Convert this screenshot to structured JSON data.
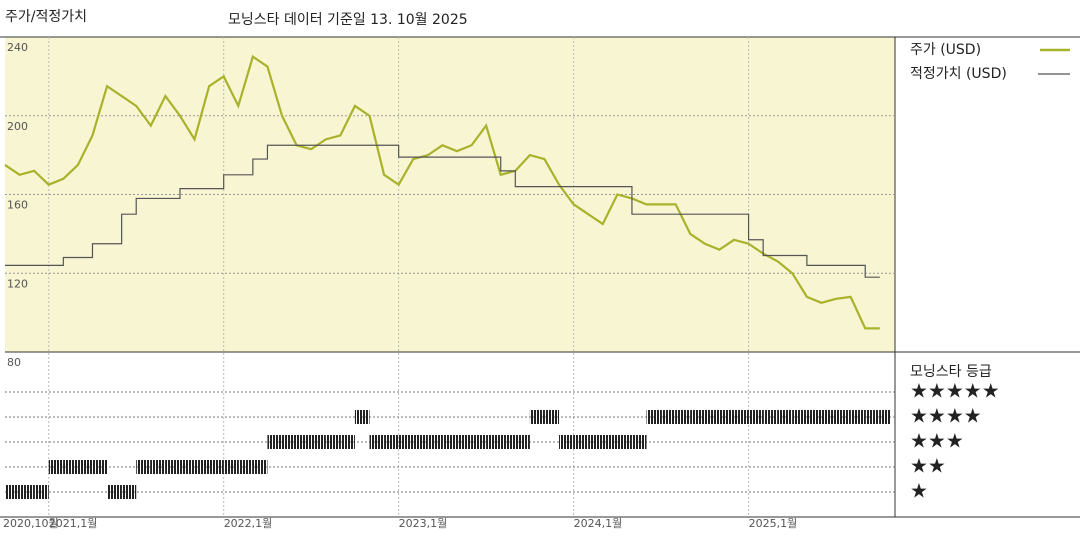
{
  "chart_data": [
    {
      "type": "line",
      "title": "주가/적정가치",
      "subtitle": "모닝스타 데이터 기준일 13. 10월 2025",
      "x": [
        "2020-10",
        "2020-11",
        "2020-12",
        "2021-01",
        "2021-02",
        "2021-03",
        "2021-04",
        "2021-05",
        "2021-06",
        "2021-07",
        "2021-08",
        "2021-09",
        "2021-10",
        "2021-11",
        "2021-12",
        "2022-01",
        "2022-02",
        "2022-03",
        "2022-04",
        "2022-05",
        "2022-06",
        "2022-07",
        "2022-08",
        "2022-09",
        "2022-10",
        "2022-11",
        "2022-12",
        "2023-01",
        "2023-02",
        "2023-03",
        "2023-04",
        "2023-05",
        "2023-06",
        "2023-07",
        "2023-08",
        "2023-09",
        "2023-10",
        "2023-11",
        "2023-12",
        "2024-01",
        "2024-02",
        "2024-03",
        "2024-04",
        "2024-05",
        "2024-06",
        "2024-07",
        "2024-08",
        "2024-09",
        "2024-10",
        "2024-11",
        "2024-12",
        "2025-01",
        "2025-02",
        "2025-03",
        "2025-04",
        "2025-05",
        "2025-06",
        "2025-07",
        "2025-08",
        "2025-09",
        "2025-10"
      ],
      "series": [
        {
          "name": "주가 (USD)",
          "color": "#a8b22a",
          "step": false,
          "values": [
            175,
            170,
            172,
            165,
            168,
            175,
            190,
            215,
            210,
            205,
            195,
            210,
            200,
            188,
            215,
            220,
            205,
            230,
            225,
            200,
            185,
            183,
            188,
            190,
            205,
            200,
            170,
            165,
            178,
            180,
            185,
            182,
            185,
            195,
            170,
            172,
            180,
            178,
            165,
            155,
            150,
            145,
            160,
            158,
            155,
            155,
            155,
            140,
            135,
            132,
            137,
            135,
            130,
            126,
            120,
            108,
            105,
            107,
            108,
            92,
            92
          ]
        },
        {
          "name": "적정가치 (USD)",
          "color": "#555555",
          "step": true,
          "values": [
            124,
            124,
            124,
            124,
            128,
            128,
            135,
            135,
            150,
            158,
            158,
            158,
            163,
            163,
            163,
            170,
            170,
            178,
            185,
            185,
            185,
            185,
            185,
            185,
            185,
            185,
            185,
            179,
            179,
            179,
            179,
            179,
            179,
            179,
            172,
            164,
            164,
            164,
            164,
            164,
            164,
            164,
            164,
            150,
            150,
            150,
            150,
            150,
            150,
            150,
            150,
            137,
            129,
            129,
            129,
            124,
            124,
            124,
            124,
            118,
            118
          ]
        }
      ],
      "xticks": [
        {
          "value": "2020-10",
          "label": "2020,10월"
        },
        {
          "value": "2021-01",
          "label": "2021,1월"
        },
        {
          "value": "2022-01",
          "label": "2022,1월"
        },
        {
          "value": "2023-01",
          "label": "2023,1월"
        },
        {
          "value": "2024-01",
          "label": "2024,1월"
        },
        {
          "value": "2025-01",
          "label": "2025,1월"
        }
      ],
      "ylim": [
        80,
        240
      ],
      "yticks": [
        80,
        120,
        160,
        200,
        240
      ],
      "grid": true
    },
    {
      "type": "rating",
      "title": "모닝스타 등급",
      "color": "#222222",
      "x": [
        "2020-10",
        "2020-11",
        "2020-12",
        "2021-01",
        "2021-02",
        "2021-03",
        "2021-04",
        "2021-05",
        "2021-06",
        "2021-07",
        "2021-08",
        "2021-09",
        "2021-10",
        "2021-11",
        "2021-12",
        "2022-01",
        "2022-02",
        "2022-03",
        "2022-04",
        "2022-05",
        "2022-06",
        "2022-07",
        "2022-08",
        "2022-09",
        "2022-10",
        "2022-11",
        "2022-12",
        "2023-01",
        "2023-02",
        "2023-03",
        "2023-04",
        "2023-05",
        "2023-06",
        "2023-07",
        "2023-08",
        "2023-09",
        "2023-10",
        "2023-11",
        "2023-12",
        "2024-01",
        "2024-02",
        "2024-03",
        "2024-04",
        "2024-05",
        "2024-06",
        "2024-07",
        "2024-08",
        "2024-09",
        "2024-10",
        "2024-11",
        "2024-12",
        "2025-01",
        "2025-02",
        "2025-03",
        "2025-04",
        "2025-05",
        "2025-06",
        "2025-07",
        "2025-08",
        "2025-09",
        "2025-10"
      ],
      "values": [
        1,
        1,
        1,
        2,
        2,
        2,
        2,
        1,
        1,
        2,
        2,
        2,
        2,
        2,
        2,
        2,
        2,
        2,
        3,
        3,
        3,
        3,
        3,
        3,
        4,
        3,
        3,
        3,
        3,
        3,
        3,
        3,
        3,
        3,
        3,
        3,
        4,
        4,
        3,
        3,
        3,
        3,
        3,
        3,
        4,
        4,
        4,
        4,
        4,
        4,
        4,
        4,
        4,
        4,
        4,
        4,
        4,
        4,
        4,
        4,
        4
      ],
      "ylim": [
        1,
        5
      ],
      "yticks": [
        {
          "value": 5,
          "label": "★★★★★"
        },
        {
          "value": 4,
          "label": "★★★★"
        },
        {
          "value": 3,
          "label": "★★★"
        },
        {
          "value": 2,
          "label": "★★"
        },
        {
          "value": 1,
          "label": "★"
        }
      ]
    }
  ]
}
